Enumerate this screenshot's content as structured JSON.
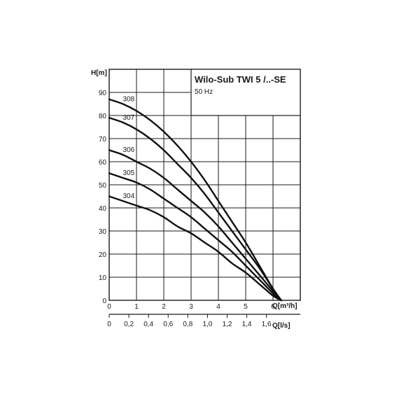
{
  "chart_data": {
    "type": "line",
    "title": "Wilo-Sub TWI 5 /..-SE",
    "subtitle": "50 Hz",
    "xlabel": "Q[m³/h]",
    "ylabel": "H[m]",
    "x2label": "Q[l/s]",
    "xlim": [
      0,
      7
    ],
    "ylim": [
      0,
      100
    ],
    "x_ticks": [
      "0",
      "1",
      "2",
      "3",
      "4",
      "5",
      "6"
    ],
    "y_ticks": [
      "0",
      "10",
      "20",
      "30",
      "40",
      "50",
      "60",
      "70",
      "80",
      "90"
    ],
    "x2_ticks": [
      "0",
      "0,2",
      "0,4",
      "0,6",
      "0,8",
      "1,0",
      "1,2",
      "1,4",
      "1,6"
    ],
    "x2_tick_values_ls": [
      0,
      0.2,
      0.4,
      0.6,
      0.8,
      1.0,
      1.2,
      1.4,
      1.6
    ],
    "grid": true,
    "series": [
      {
        "name": "308",
        "x": [
          0,
          0.5,
          1,
          1.5,
          2,
          2.5,
          3,
          3.5,
          4,
          4.5,
          5,
          5.5,
          6,
          6.3
        ],
        "y": [
          87,
          85,
          82,
          78,
          73,
          67,
          60,
          52,
          43,
          34,
          25,
          15,
          5,
          0
        ]
      },
      {
        "name": "307",
        "x": [
          0,
          0.5,
          1,
          1.5,
          2,
          2.5,
          3,
          3.5,
          4,
          4.5,
          5,
          5.5,
          6,
          6.3
        ],
        "y": [
          79,
          77,
          74,
          70,
          65,
          59,
          53,
          46,
          38,
          30,
          22,
          14,
          5,
          0
        ]
      },
      {
        "name": "306",
        "x": [
          0,
          0.5,
          1,
          1.5,
          2,
          2.5,
          3,
          3.5,
          4,
          4.5,
          5,
          5.5,
          6,
          6.3
        ],
        "y": [
          65,
          63,
          60,
          57,
          53,
          48,
          43,
          38,
          32,
          25,
          18,
          11,
          4,
          0
        ]
      },
      {
        "name": "305",
        "x": [
          0,
          0.5,
          1,
          1.5,
          2,
          2.5,
          3,
          3.5,
          4,
          4.5,
          5,
          5.5,
          6,
          6.3
        ],
        "y": [
          55,
          53,
          51,
          48,
          44,
          40,
          36,
          31,
          26,
          21,
          15,
          9,
          3,
          0
        ]
      },
      {
        "name": "304",
        "x": [
          0,
          0.5,
          1,
          1.5,
          2,
          2.5,
          3,
          3.5,
          4,
          4.5,
          5,
          5.5,
          6,
          6.3
        ],
        "y": [
          45,
          43,
          41,
          39,
          36,
          32,
          29,
          25,
          21,
          16,
          12,
          7,
          2,
          0
        ]
      }
    ]
  }
}
